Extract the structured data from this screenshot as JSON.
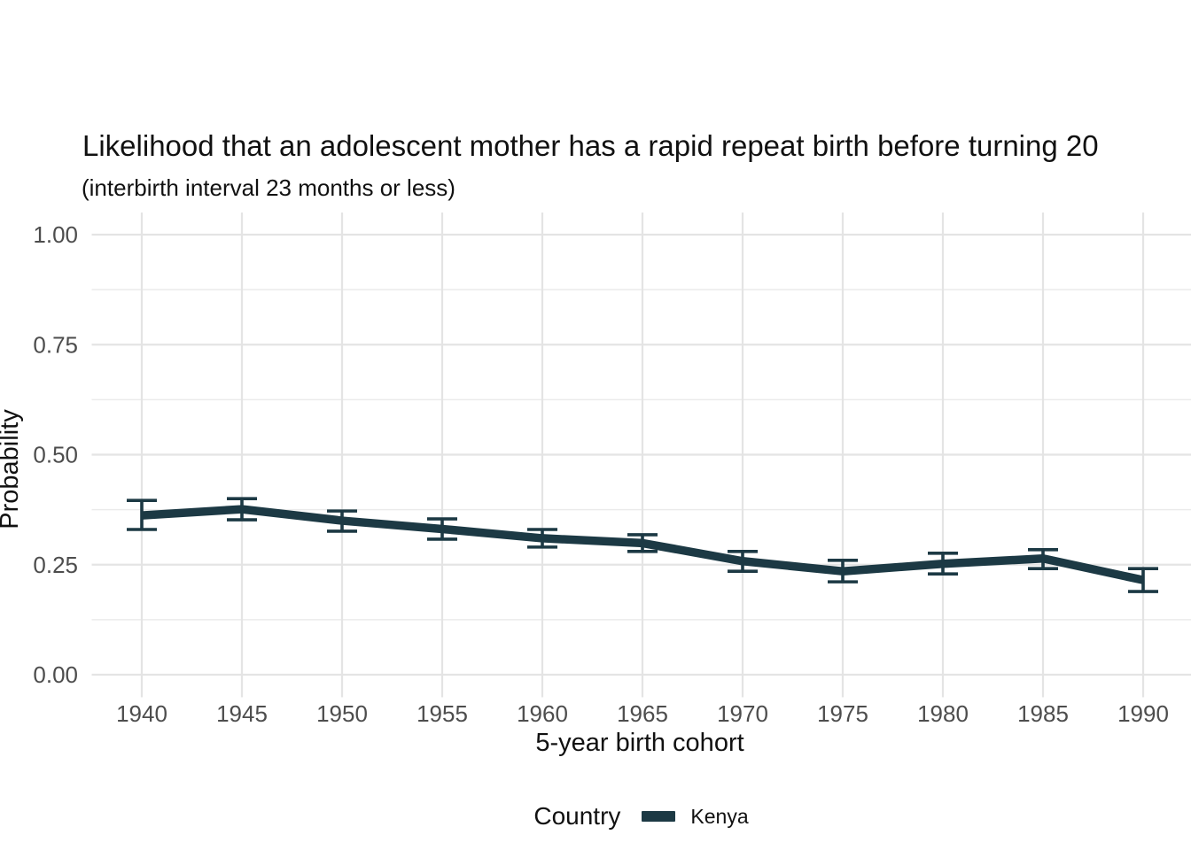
{
  "title": "Likelihood that an adolescent mother has a rapid repeat birth before turning 20",
  "subtitle": "(interbirth interval 23 months or less)",
  "chart_data": {
    "type": "line",
    "title": "Likelihood that an adolescent mother has a rapid repeat birth before turning 20",
    "subtitle": "(interbirth interval 23 months or less)",
    "xlabel": "5-year birth cohort",
    "ylabel": "Probability",
    "x": [
      1940,
      1945,
      1950,
      1955,
      1960,
      1965,
      1970,
      1975,
      1980,
      1985,
      1990
    ],
    "series": [
      {
        "name": "Kenya",
        "color": "#1c3944",
        "values": [
          0.362,
          0.376,
          0.35,
          0.331,
          0.31,
          0.299,
          0.258,
          0.235,
          0.252,
          0.264,
          0.215
        ],
        "ci_lower": [
          0.33,
          0.352,
          0.326,
          0.308,
          0.29,
          0.28,
          0.235,
          0.211,
          0.229,
          0.241,
          0.189
        ],
        "ci_upper": [
          0.396,
          0.4,
          0.372,
          0.354,
          0.33,
          0.318,
          0.28,
          0.26,
          0.276,
          0.284,
          0.241
        ]
      }
    ],
    "ylim": [
      0,
      1
    ],
    "yticks": [
      0.0,
      0.25,
      0.5,
      0.75,
      1.0
    ],
    "ytick_labels": [
      "0.00",
      "0.25",
      "0.50",
      "0.75",
      "1.00"
    ],
    "grid": "horizontal major+minor, vertical major only",
    "legend": {
      "title": "Country",
      "position": "bottom"
    },
    "colors": {
      "series": "#1c3944",
      "grid_major": "#e4e4e4",
      "grid_minor": "#ebebeb",
      "tick_text": "#4d4d4d",
      "axis_title_text": "#111111",
      "background": "#ffffff"
    }
  }
}
